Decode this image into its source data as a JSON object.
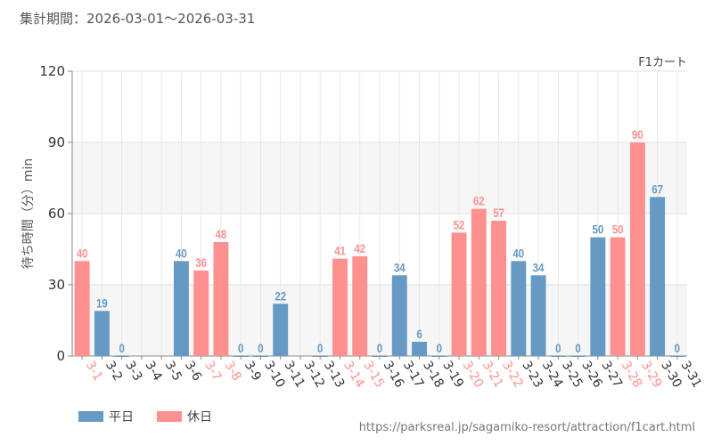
{
  "period_label": "集計期間：2026-03-01〜2026-03-31",
  "source_url": "https://parksreal.jp/sagamiko-resort/attraction/f1cart.html",
  "legend": [
    {
      "name": "平日",
      "color": "#6699c3"
    },
    {
      "name": "休日",
      "color": "#ff9090"
    }
  ],
  "chart_data": {
    "type": "bar",
    "title": "F1カート",
    "ylabel": "待ち時間（分）min",
    "xlabel": "",
    "ylim": [
      0,
      120
    ],
    "yticks": [
      0,
      30,
      60,
      90,
      120
    ],
    "grid": true,
    "legend_position": "bottom-left",
    "colors": {
      "weekday": "#6699c3",
      "holiday": "#ff9090"
    },
    "categories": [
      "3-1",
      "3-2",
      "3-3",
      "3-4",
      "3-5",
      "3-6",
      "3-7",
      "3-8",
      "3-9",
      "3-10",
      "3-11",
      "3-12",
      "3-13",
      "3-14",
      "3-15",
      "3-16",
      "3-17",
      "3-18",
      "3-19",
      "3-20",
      "3-21",
      "3-22",
      "3-23",
      "3-24",
      "3-25",
      "3-26",
      "3-27",
      "3-28",
      "3-29",
      "3-30",
      "3-31"
    ],
    "values": [
      40,
      19,
      0,
      null,
      null,
      40,
      36,
      48,
      0,
      0,
      22,
      null,
      0,
      41,
      42,
      0,
      34,
      6,
      0,
      52,
      62,
      57,
      40,
      34,
      0,
      0,
      50,
      50,
      90,
      67,
      0
    ],
    "holiday": [
      true,
      false,
      false,
      false,
      false,
      false,
      true,
      true,
      false,
      false,
      false,
      false,
      false,
      true,
      true,
      false,
      false,
      false,
      false,
      true,
      true,
      true,
      false,
      false,
      false,
      false,
      false,
      true,
      true,
      false,
      false
    ]
  }
}
